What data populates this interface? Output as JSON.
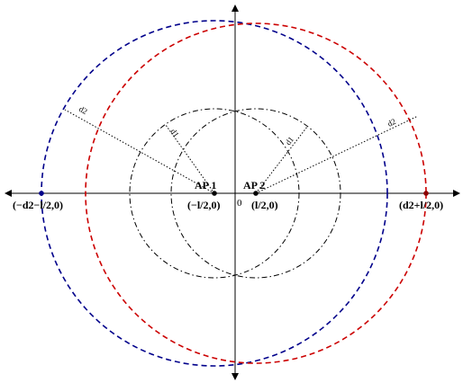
{
  "labels": {
    "ap1": "AP 1",
    "ap2": "AP 2",
    "ap1_coord": "(−l/2,0)",
    "ap2_coord": "(l/2,0)",
    "origin": "0",
    "left_point": "(−d2−l/2,0)",
    "right_point": "(d2+l/2,0)",
    "d1_left": "d1",
    "d1_right": "d1",
    "d2_left": "d2",
    "d2_right": "d2"
  },
  "colors": {
    "ap1_large_circle": "#00008b",
    "ap2_large_circle": "#cc0000",
    "small_circles": "#000000",
    "axes": "#000000",
    "left_point": "#00008b",
    "right_point": "#8b0000"
  }
}
